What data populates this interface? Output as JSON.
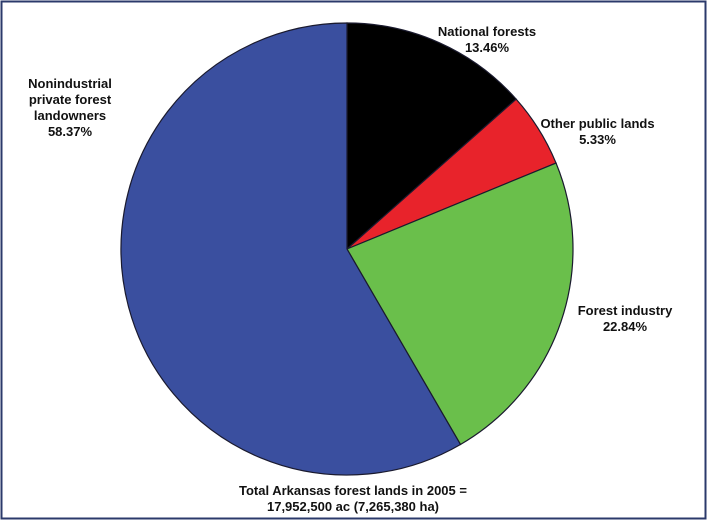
{
  "chart_data": {
    "type": "pie",
    "categories": [
      "National forests",
      "Other public lands",
      "Forest industry",
      "Nonindustrial private forest landowners"
    ],
    "values": [
      13.46,
      5.33,
      22.84,
      58.37
    ],
    "value_labels": [
      "13.46%",
      "5.33%",
      "22.84%",
      "58.37%"
    ],
    "colors": [
      "#000000",
      "#e8232b",
      "#6abf4b",
      "#3a4f9f"
    ],
    "caption": [
      "Total Arkansas forest lands in 2005 =",
      "17,952,500 ac (7,265,380 ha)"
    ]
  }
}
